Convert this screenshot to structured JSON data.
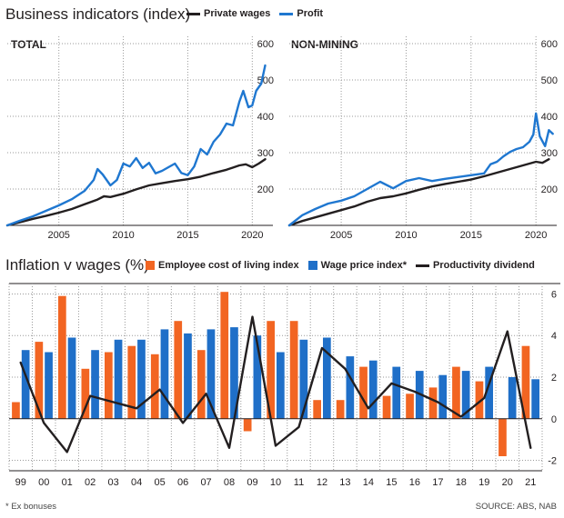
{
  "header": {
    "title": "Business indicators (index)",
    "legend": [
      {
        "label": "Private wages",
        "color": "#231f20"
      },
      {
        "label": "Profit",
        "color": "#1f77d0"
      }
    ]
  },
  "lower_header": {
    "title": "Inflation v wages (%)",
    "legend": [
      {
        "label": "Employee cost of living index",
        "color": "#f26522"
      },
      {
        "label": "Wage price index*",
        "color": "#1f6fc8"
      },
      {
        "label": "Productivity dividend",
        "color": "#231f20"
      }
    ]
  },
  "footer": {
    "note": "* Ex bonuses",
    "source": "SOURCE: ABS, NAB"
  },
  "chart_data": [
    {
      "type": "line",
      "title": "TOTAL",
      "x_ticks": [
        2005,
        2010,
        2015,
        2020
      ],
      "y_ticks": [
        200,
        300,
        400,
        500,
        600
      ],
      "xlim": [
        2001,
        2021.6
      ],
      "ylim": [
        100,
        620
      ],
      "series": [
        {
          "name": "Private wages",
          "color": "#231f20",
          "x": [
            2001,
            2002,
            2003,
            2004,
            2005,
            2006,
            2007,
            2008,
            2008.5,
            2009,
            2010,
            2011,
            2012,
            2013,
            2014,
            2015,
            2016,
            2017,
            2018,
            2019,
            2019.5,
            2020,
            2020.5,
            2021
          ],
          "values": [
            100,
            109,
            118,
            126,
            135,
            145,
            158,
            171,
            180,
            178,
            187,
            199,
            210,
            216,
            222,
            227,
            234,
            244,
            253,
            265,
            268,
            260,
            270,
            282
          ]
        },
        {
          "name": "Profit",
          "color": "#1f77d0",
          "x": [
            2001,
            2002,
            2003,
            2004,
            2005,
            2006,
            2007,
            2007.7,
            2008,
            2008.4,
            2009,
            2009.5,
            2010,
            2010.5,
            2011,
            2011.5,
            2012,
            2012.5,
            2013,
            2013.5,
            2014,
            2014.5,
            2015,
            2015.5,
            2016,
            2016.5,
            2017,
            2017.5,
            2018,
            2018.5,
            2019,
            2019.3,
            2019.7,
            2020,
            2020.3,
            2020.7,
            2021
          ],
          "values": [
            100,
            113,
            125,
            140,
            155,
            172,
            195,
            225,
            255,
            240,
            210,
            225,
            270,
            262,
            285,
            258,
            272,
            243,
            250,
            260,
            270,
            244,
            238,
            262,
            310,
            295,
            330,
            350,
            380,
            375,
            440,
            470,
            425,
            430,
            470,
            490,
            540
          ]
        }
      ]
    },
    {
      "type": "line",
      "title": "NON-MINING",
      "x_ticks": [
        2005,
        2010,
        2015,
        2020
      ],
      "y_ticks": [
        200,
        300,
        400,
        500,
        600
      ],
      "xlim": [
        2001,
        2021.6
      ],
      "ylim": [
        100,
        620
      ],
      "series": [
        {
          "name": "Private wages",
          "color": "#231f20",
          "x": [
            2001,
            2002,
            2003,
            2004,
            2005,
            2006,
            2007,
            2008,
            2009,
            2010,
            2011,
            2012,
            2013,
            2014,
            2015,
            2016,
            2017,
            2018,
            2019,
            2020,
            2020.5,
            2021
          ],
          "values": [
            100,
            112,
            122,
            132,
            142,
            152,
            165,
            175,
            180,
            188,
            198,
            207,
            214,
            220,
            226,
            235,
            245,
            255,
            265,
            275,
            272,
            282
          ]
        },
        {
          "name": "Profit",
          "color": "#1f77d0",
          "x": [
            2001,
            2002,
            2003,
            2004,
            2005,
            2006,
            2007,
            2008,
            2009,
            2010,
            2011,
            2012,
            2013,
            2014,
            2015,
            2016,
            2016.5,
            2017,
            2017.5,
            2018,
            2018.5,
            2019,
            2019.5,
            2019.8,
            2020,
            2020.3,
            2020.7,
            2021,
            2021.3
          ],
          "values": [
            100,
            128,
            145,
            160,
            168,
            180,
            200,
            220,
            202,
            222,
            230,
            222,
            228,
            233,
            238,
            243,
            268,
            275,
            290,
            302,
            310,
            315,
            330,
            350,
            408,
            345,
            318,
            362,
            352
          ]
        }
      ]
    },
    {
      "type": "bar",
      "title": "",
      "categories": [
        "99",
        "00",
        "01",
        "02",
        "03",
        "04",
        "05",
        "06",
        "07",
        "08",
        "09",
        "10",
        "11",
        "12",
        "13",
        "14",
        "15",
        "16",
        "17",
        "18",
        "19",
        "20",
        "21"
      ],
      "ylim": [
        -2.5,
        6.5
      ],
      "y_ticks": [
        -2,
        0,
        2,
        4,
        6
      ],
      "series": [
        {
          "name": "Employee cost of living index",
          "color": "#f26522",
          "values": [
            0.8,
            3.7,
            5.9,
            2.4,
            3.2,
            3.5,
            3.1,
            4.7,
            3.3,
            6.1,
            -0.6,
            4.7,
            4.7,
            0.9,
            0.9,
            2.5,
            1.1,
            1.2,
            1.5,
            2.5,
            1.8,
            -1.8,
            3.5
          ]
        },
        {
          "name": "Wage price index*",
          "color": "#1f6fc8",
          "values": [
            3.3,
            3.2,
            3.9,
            3.3,
            3.8,
            3.8,
            4.3,
            4.1,
            4.3,
            4.4,
            4.0,
            3.2,
            3.8,
            3.9,
            3.0,
            2.8,
            2.5,
            2.3,
            2.1,
            2.3,
            2.5,
            2.0,
            1.9
          ]
        },
        {
          "name": "Productivity dividend",
          "color": "#231f20",
          "type": "line",
          "values": [
            2.7,
            -0.2,
            -1.6,
            1.1,
            0.8,
            0.5,
            1.4,
            -0.2,
            1.2,
            -1.4,
            4.9,
            -1.3,
            -0.4,
            3.4,
            2.4,
            0.5,
            1.7,
            1.3,
            0.8,
            0.1,
            1.0,
            4.2,
            -1.4
          ]
        }
      ]
    }
  ]
}
